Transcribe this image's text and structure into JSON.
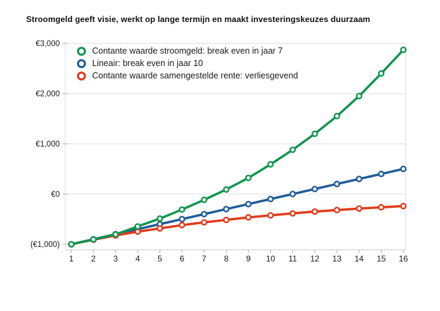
{
  "title": "Stroomgeld geeft visie, werkt op lange termijn en maakt investeringskeuzes duurzaam",
  "chart_data": {
    "type": "line",
    "title": "Stroomgeld geeft visie, werkt op lange termijn en maakt investeringskeuzes duurzaam",
    "xlabel": "",
    "ylabel": "",
    "x_labels": [
      "1",
      "2",
      "3",
      "4",
      "5",
      "6",
      "7",
      "8",
      "9",
      "10",
      "11",
      "12",
      "13",
      "14",
      "15",
      "16"
    ],
    "y_ticks": [
      {
        "label": "€3,000",
        "value": 3000
      },
      {
        "label": "€2,000",
        "value": 2000
      },
      {
        "label": "€1,000",
        "value": 1000
      },
      {
        "label": "€0",
        "value": 0
      },
      {
        "label": "(€1,000)",
        "value": -1000
      }
    ],
    "ylim": [
      -1110,
      3000
    ],
    "grid": "horizontal",
    "legend_position": "top-left-inside",
    "marker": "open-circle",
    "colors": {
      "green": "#10964f",
      "blue": "#1e5c99",
      "red": "#e23a1c",
      "gridline": "#dcdcdc",
      "axis": "#c9c9c9",
      "tick": "#b0b0b0",
      "text": "#1a1a1a"
    },
    "series": [
      {
        "name": "Contante waarde stroomgeld: break even in jaar 7",
        "color": "#10964f",
        "values": [
          -1000,
          -905,
          -805,
          -645,
          -490,
          -310,
          -115,
          90,
          320,
          590,
          880,
          1200,
          1550,
          1950,
          2400,
          2870
        ]
      },
      {
        "name": "Lineair: break even in jaar 10",
        "color": "#1e5c99",
        "values": [
          -1000,
          -900,
          -800,
          -700,
          -600,
          -500,
          -400,
          -300,
          -200,
          -100,
          0,
          100,
          200,
          300,
          400,
          500
        ]
      },
      {
        "name": "Contante waarde samengestelde rente: verliesgevend",
        "color": "#e23a1c",
        "values": [
          -1000,
          -910,
          -825,
          -750,
          -685,
          -620,
          -565,
          -515,
          -465,
          -425,
          -385,
          -350,
          -320,
          -290,
          -265,
          -240
        ]
      }
    ]
  }
}
